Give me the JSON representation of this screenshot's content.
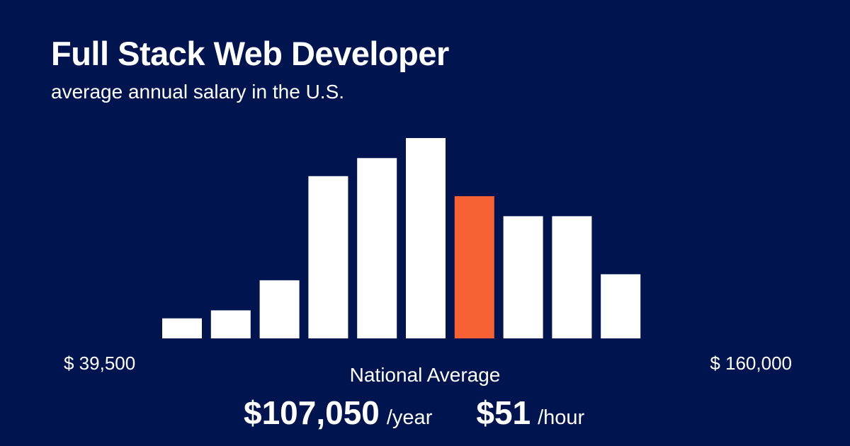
{
  "header": {
    "title": "Full Stack Web Developer",
    "subtitle": "average annual salary in the U.S."
  },
  "range": {
    "min_label": "$ 39,500",
    "max_label": "$ 160,000"
  },
  "national_average": {
    "label": "National Average",
    "annual_value": "$107,050",
    "annual_unit": "/year",
    "hourly_value": "$51",
    "hourly_unit": "/hour"
  },
  "colors": {
    "background": "#001450",
    "bar": "#ffffff",
    "highlight_bar": "#f86134",
    "text": "#ffffff"
  },
  "chart_data": {
    "type": "bar",
    "title": "Full Stack Web Developer",
    "subtitle": "average annual salary in the U.S.",
    "xlabel": "",
    "ylabel": "",
    "grid": false,
    "x_range": [
      "$ 39,500",
      "$ 160,000"
    ],
    "ylim": [
      0,
      100
    ],
    "values": [
      10,
      14,
      29,
      81,
      90,
      100,
      71,
      61,
      61,
      32
    ],
    "highlight_index": 6
  }
}
